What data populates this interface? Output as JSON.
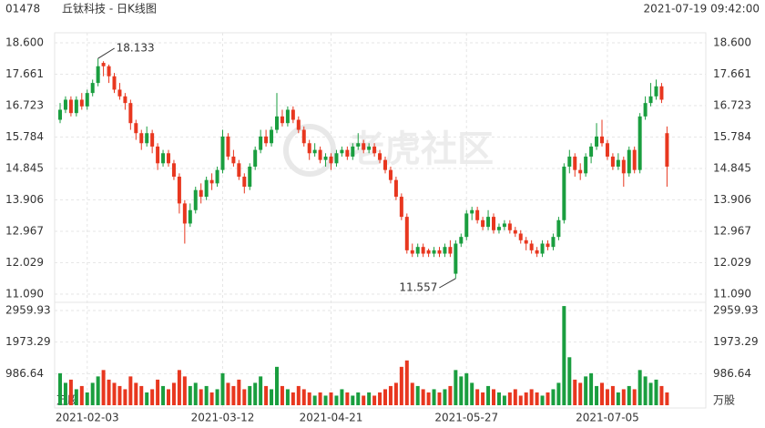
{
  "header": {
    "code": "01478",
    "title": "丘钛科技 - 日K线图",
    "timestamp": "2021-07-19 09:42:00"
  },
  "watermark": "老虎社区",
  "chart_data": [
    {
      "type": "candlestick",
      "up_color": "#1a9e3f",
      "down_color": "#e8371f",
      "grid": true,
      "categories": [
        null,
        null,
        null,
        null,
        null,
        "2021-02-03",
        null,
        null,
        null,
        null,
        null,
        null,
        null,
        null,
        null,
        null,
        null,
        null,
        null,
        null,
        null,
        null,
        null,
        null,
        null,
        null,
        null,
        null,
        null,
        null,
        "2021-03-12",
        null,
        null,
        null,
        null,
        null,
        null,
        null,
        null,
        null,
        null,
        null,
        null,
        null,
        null,
        null,
        null,
        null,
        null,
        null,
        "2021-04-21",
        null,
        null,
        null,
        null,
        null,
        null,
        null,
        null,
        null,
        null,
        null,
        null,
        null,
        null,
        null,
        null,
        null,
        null,
        null,
        null,
        null,
        null,
        null,
        null,
        "2021-05-27",
        null,
        null,
        null,
        null,
        null,
        null,
        null,
        null,
        null,
        null,
        null,
        null,
        null,
        null,
        null,
        null,
        null,
        null,
        null,
        null,
        null,
        null,
        null,
        null,
        null,
        "2021-07-05",
        null,
        null,
        null,
        null,
        null,
        null,
        null,
        null,
        null,
        null,
        null
      ],
      "ohlc": [
        [
          16.3,
          16.8,
          16.2,
          16.6
        ],
        [
          16.6,
          17.0,
          16.5,
          16.9
        ],
        [
          16.9,
          17.0,
          16.4,
          16.5
        ],
        [
          16.5,
          17.0,
          16.4,
          16.9
        ],
        [
          16.9,
          17.1,
          16.6,
          16.7
        ],
        [
          16.7,
          17.2,
          16.6,
          17.1
        ],
        [
          17.1,
          17.5,
          17.0,
          17.4
        ],
        [
          17.4,
          18.133,
          17.3,
          17.9
        ],
        [
          18.0,
          18.05,
          17.6,
          17.9
        ],
        [
          17.9,
          17.95,
          17.4,
          17.6
        ],
        [
          17.6,
          17.7,
          17.1,
          17.2
        ],
        [
          17.2,
          17.4,
          16.9,
          17.0
        ],
        [
          17.0,
          17.1,
          16.6,
          16.8
        ],
        [
          16.8,
          16.9,
          16.0,
          16.2
        ],
        [
          16.2,
          16.3,
          15.7,
          15.9
        ],
        [
          15.9,
          16.0,
          15.4,
          15.6
        ],
        [
          15.6,
          16.1,
          15.5,
          15.9
        ],
        [
          15.9,
          16.0,
          15.3,
          15.5
        ],
        [
          15.5,
          15.6,
          14.8,
          15.0
        ],
        [
          15.0,
          15.4,
          14.9,
          15.3
        ],
        [
          15.3,
          15.4,
          14.9,
          15.0
        ],
        [
          15.0,
          15.1,
          14.5,
          14.6
        ],
        [
          14.6,
          14.7,
          13.5,
          13.8
        ],
        [
          13.8,
          13.9,
          12.6,
          13.2
        ],
        [
          13.2,
          13.8,
          13.1,
          13.6
        ],
        [
          13.6,
          14.3,
          13.5,
          14.2
        ],
        [
          14.2,
          14.4,
          13.8,
          14.0
        ],
        [
          14.0,
          14.6,
          13.9,
          14.5
        ],
        [
          14.5,
          14.7,
          14.2,
          14.4
        ],
        [
          14.4,
          14.9,
          14.3,
          14.8
        ],
        [
          14.8,
          16.0,
          14.7,
          15.8
        ],
        [
          15.8,
          15.9,
          15.1,
          15.2
        ],
        [
          15.2,
          15.4,
          14.9,
          15.0
        ],
        [
          15.0,
          15.1,
          14.5,
          14.6
        ],
        [
          14.6,
          14.7,
          14.1,
          14.3
        ],
        [
          14.3,
          15.0,
          14.2,
          14.9
        ],
        [
          14.9,
          15.5,
          14.8,
          15.4
        ],
        [
          15.4,
          16.0,
          15.3,
          15.8
        ],
        [
          15.8,
          16.0,
          15.5,
          15.6
        ],
        [
          15.6,
          16.1,
          15.5,
          16.0
        ],
        [
          16.0,
          17.1,
          15.9,
          16.4
        ],
        [
          16.4,
          16.6,
          16.1,
          16.2
        ],
        [
          16.2,
          16.7,
          16.1,
          16.6
        ],
        [
          16.6,
          16.7,
          16.2,
          16.3
        ],
        [
          16.3,
          16.4,
          15.9,
          16.0
        ],
        [
          16.0,
          16.1,
          15.5,
          15.6
        ],
        [
          15.6,
          15.7,
          15.1,
          15.3
        ],
        [
          15.3,
          15.6,
          15.2,
          15.4
        ],
        [
          15.4,
          15.5,
          15.0,
          15.1
        ],
        [
          15.1,
          15.3,
          14.9,
          15.2
        ],
        [
          15.2,
          15.3,
          14.8,
          15.0
        ],
        [
          15.0,
          15.4,
          14.9,
          15.3
        ],
        [
          15.3,
          15.5,
          15.2,
          15.4
        ],
        [
          15.4,
          15.5,
          15.1,
          15.2
        ],
        [
          15.2,
          15.6,
          15.1,
          15.5
        ],
        [
          15.5,
          15.9,
          15.4,
          15.6
        ],
        [
          15.6,
          15.7,
          15.3,
          15.4
        ],
        [
          15.4,
          15.6,
          15.3,
          15.5
        ],
        [
          15.5,
          15.6,
          15.2,
          15.3
        ],
        [
          15.3,
          15.4,
          15.0,
          15.1
        ],
        [
          15.1,
          15.2,
          14.7,
          14.8
        ],
        [
          14.8,
          14.9,
          14.4,
          14.5
        ],
        [
          14.5,
          14.6,
          13.9,
          14.0
        ],
        [
          14.0,
          14.1,
          13.3,
          13.4
        ],
        [
          13.4,
          13.5,
          12.3,
          12.4
        ],
        [
          12.4,
          12.6,
          12.2,
          12.3
        ],
        [
          12.3,
          12.6,
          12.2,
          12.5
        ],
        [
          12.5,
          12.6,
          12.2,
          12.3
        ],
        [
          12.4,
          12.45,
          12.2,
          12.3
        ],
        [
          12.3,
          12.5,
          12.2,
          12.4
        ],
        [
          12.4,
          12.5,
          12.2,
          12.3
        ],
        [
          12.3,
          12.6,
          12.2,
          12.5
        ],
        [
          12.5,
          12.7,
          12.2,
          12.3
        ],
        [
          11.7,
          12.7,
          11.557,
          12.6
        ],
        [
          12.6,
          12.9,
          12.5,
          12.8
        ],
        [
          12.8,
          13.6,
          12.7,
          13.5
        ],
        [
          13.5,
          13.7,
          13.3,
          13.6
        ],
        [
          13.6,
          13.7,
          13.2,
          13.3
        ],
        [
          13.3,
          13.4,
          13.0,
          13.1
        ],
        [
          13.1,
          13.6,
          13.0,
          13.4
        ],
        [
          13.4,
          13.5,
          12.9,
          13.0
        ],
        [
          13.0,
          13.2,
          12.9,
          13.1
        ],
        [
          13.1,
          13.3,
          13.0,
          13.2
        ],
        [
          13.2,
          13.3,
          12.9,
          13.0
        ],
        [
          13.0,
          13.1,
          12.8,
          12.9
        ],
        [
          12.9,
          13.0,
          12.6,
          12.7
        ],
        [
          12.7,
          12.8,
          12.4,
          12.6
        ],
        [
          12.6,
          12.7,
          12.3,
          12.4
        ],
        [
          12.4,
          12.5,
          12.2,
          12.3
        ],
        [
          12.3,
          12.7,
          12.2,
          12.6
        ],
        [
          12.6,
          12.7,
          12.4,
          12.5
        ],
        [
          12.5,
          12.9,
          12.4,
          12.8
        ],
        [
          12.8,
          13.4,
          12.7,
          13.3
        ],
        [
          13.3,
          15.0,
          13.2,
          14.9
        ],
        [
          14.9,
          15.4,
          14.7,
          15.2
        ],
        [
          15.2,
          15.3,
          14.6,
          14.8
        ],
        [
          14.8,
          15.0,
          14.5,
          14.7
        ],
        [
          14.7,
          15.3,
          14.6,
          15.2
        ],
        [
          15.2,
          15.6,
          15.0,
          15.5
        ],
        [
          15.5,
          16.2,
          15.4,
          15.8
        ],
        [
          15.8,
          16.3,
          15.5,
          15.6
        ],
        [
          15.6,
          15.7,
          15.1,
          15.2
        ],
        [
          15.2,
          15.3,
          14.8,
          14.9
        ],
        [
          14.9,
          15.3,
          14.8,
          15.1
        ],
        [
          15.1,
          15.2,
          14.3,
          14.7
        ],
        [
          14.7,
          15.5,
          14.6,
          15.4
        ],
        [
          15.4,
          15.5,
          14.7,
          14.8
        ],
        [
          14.8,
          16.5,
          14.7,
          16.4
        ],
        [
          16.4,
          17.0,
          16.3,
          16.8
        ],
        [
          16.8,
          17.4,
          16.7,
          17.0
        ],
        [
          17.0,
          17.5,
          16.9,
          17.3
        ],
        [
          17.3,
          17.4,
          16.8,
          16.9
        ],
        [
          15.9,
          16.1,
          14.3,
          14.9
        ]
      ],
      "ylim": [
        11.09,
        18.6
      ],
      "yticks": [
        {
          "value": 18.6,
          "label": "18.600"
        },
        17.661,
        16.723,
        15.784,
        14.845,
        13.906,
        12.967,
        12.029,
        {
          "value": 11.09,
          "label": "11.090"
        }
      ]
    },
    {
      "type": "bar",
      "unit": "万股",
      "values": [
        1000,
        700,
        800,
        500,
        600,
        400,
        700,
        900,
        1100,
        800,
        700,
        600,
        500,
        900,
        700,
        600,
        400,
        500,
        800,
        600,
        500,
        700,
        1100,
        900,
        600,
        700,
        500,
        600,
        400,
        500,
        1000,
        700,
        600,
        800,
        500,
        600,
        700,
        900,
        600,
        500,
        1200,
        600,
        500,
        400,
        600,
        500,
        400,
        300,
        400,
        300,
        400,
        300,
        500,
        400,
        300,
        400,
        300,
        400,
        300,
        400,
        500,
        600,
        700,
        1200,
        1400,
        700,
        600,
        500,
        400,
        500,
        400,
        500,
        600,
        1100,
        900,
        1000,
        700,
        500,
        400,
        600,
        500,
        400,
        300,
        400,
        500,
        300,
        400,
        500,
        400,
        300,
        400,
        500,
        700,
        3100,
        1500,
        800,
        700,
        900,
        1000,
        600,
        700,
        500,
        600,
        400,
        500,
        600,
        500,
        1100,
        900,
        700,
        800,
        600,
        400
      ],
      "ylim": [
        0,
        2959.93
      ],
      "yticks": [
        2959.93,
        1973.29,
        986.64
      ]
    }
  ]
}
